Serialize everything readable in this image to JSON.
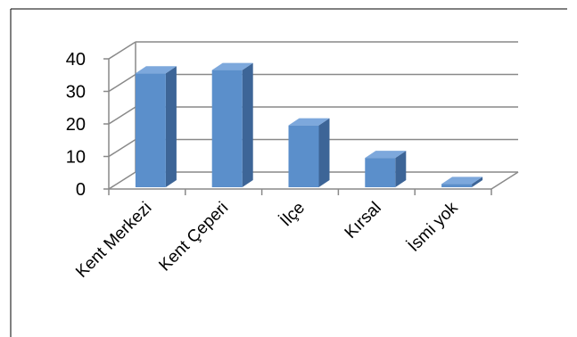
{
  "chart_data": {
    "type": "bar",
    "style": "3d-column",
    "categories": [
      "Kent Merkezi",
      "Kent Çeperi",
      "İlçe",
      "Kırsal",
      "İsmi yok"
    ],
    "values": [
      35,
      36,
      19,
      9,
      1
    ],
    "ylim": [
      0,
      40
    ],
    "yticks": [
      0,
      10,
      20,
      30,
      40
    ],
    "ytick_labels": [
      "0",
      "10",
      "20",
      "30",
      "40"
    ],
    "grid": true,
    "legend": "none",
    "colors": {
      "bar_front": "#5B8FCB",
      "bar_side": "#3D6597",
      "bar_top": "#7DA8DC",
      "grid": "#898989",
      "frame": "#000000",
      "text": "#000000"
    }
  }
}
